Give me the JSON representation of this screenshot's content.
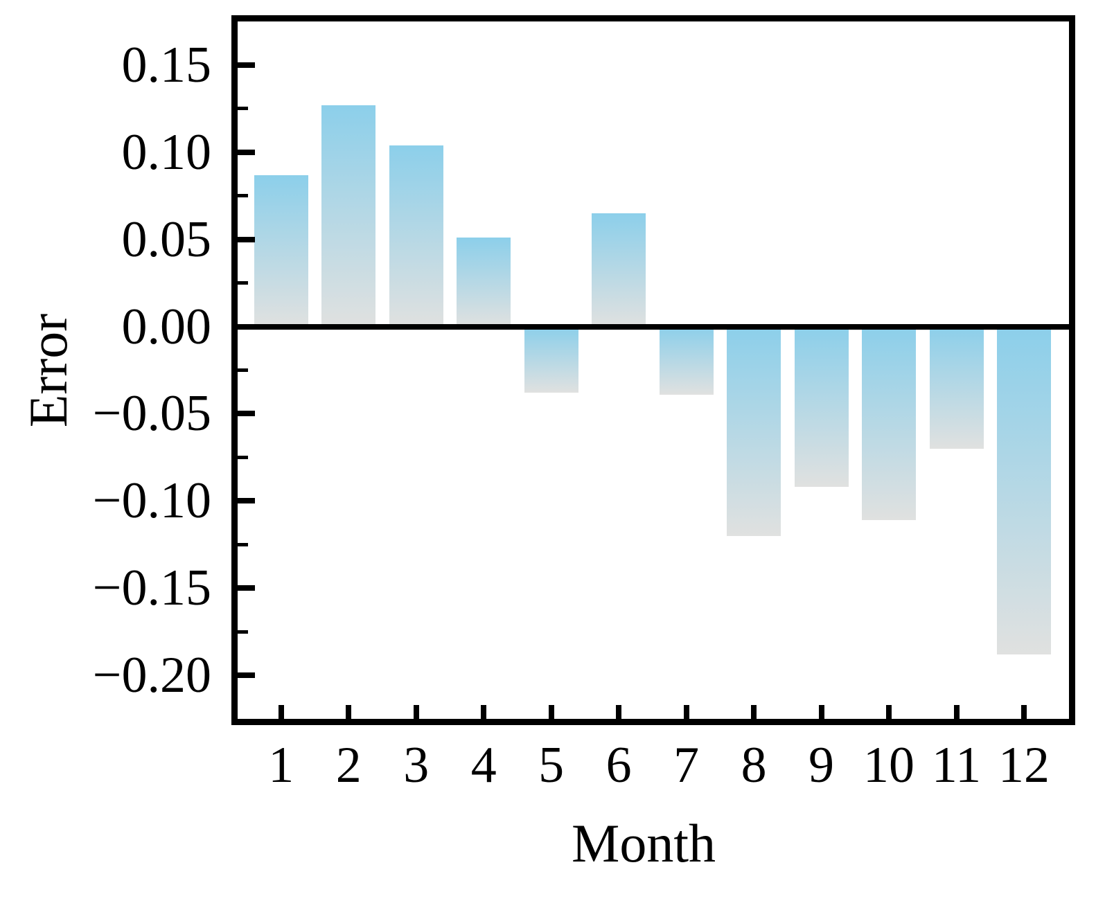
{
  "figure": {
    "background": "#ffffff",
    "axis_color": "#000000"
  },
  "chart_data": {
    "type": "bar",
    "title": "",
    "xlabel": "Month",
    "ylabel": "Error",
    "categories": [
      "1",
      "2",
      "3",
      "4",
      "5",
      "6",
      "7",
      "8",
      "9",
      "10",
      "11",
      "12"
    ],
    "values": [
      0.087,
      0.127,
      0.104,
      0.051,
      -0.038,
      0.065,
      -0.039,
      -0.12,
      -0.092,
      -0.111,
      -0.07,
      -0.188
    ],
    "ylim": [
      -0.225,
      0.175
    ],
    "yticks_major": {
      "values": [
        0.15,
        0.1,
        0.05,
        0.0,
        -0.05,
        -0.1,
        -0.15,
        -0.2
      ],
      "labels": [
        "0.15",
        "0.10",
        "0.05",
        "0.00",
        "−0.05",
        "−0.10",
        "−0.15",
        "−0.20"
      ]
    },
    "yticks_minor": [
      0.125,
      0.075,
      0.025,
      -0.025,
      -0.075,
      -0.125,
      -0.175
    ],
    "grid": false,
    "legend": null,
    "bar_gradient_top_color": "#8CCFEA",
    "bar_gradient_bottom_color": "#E0E1E0",
    "zero_line": true
  }
}
